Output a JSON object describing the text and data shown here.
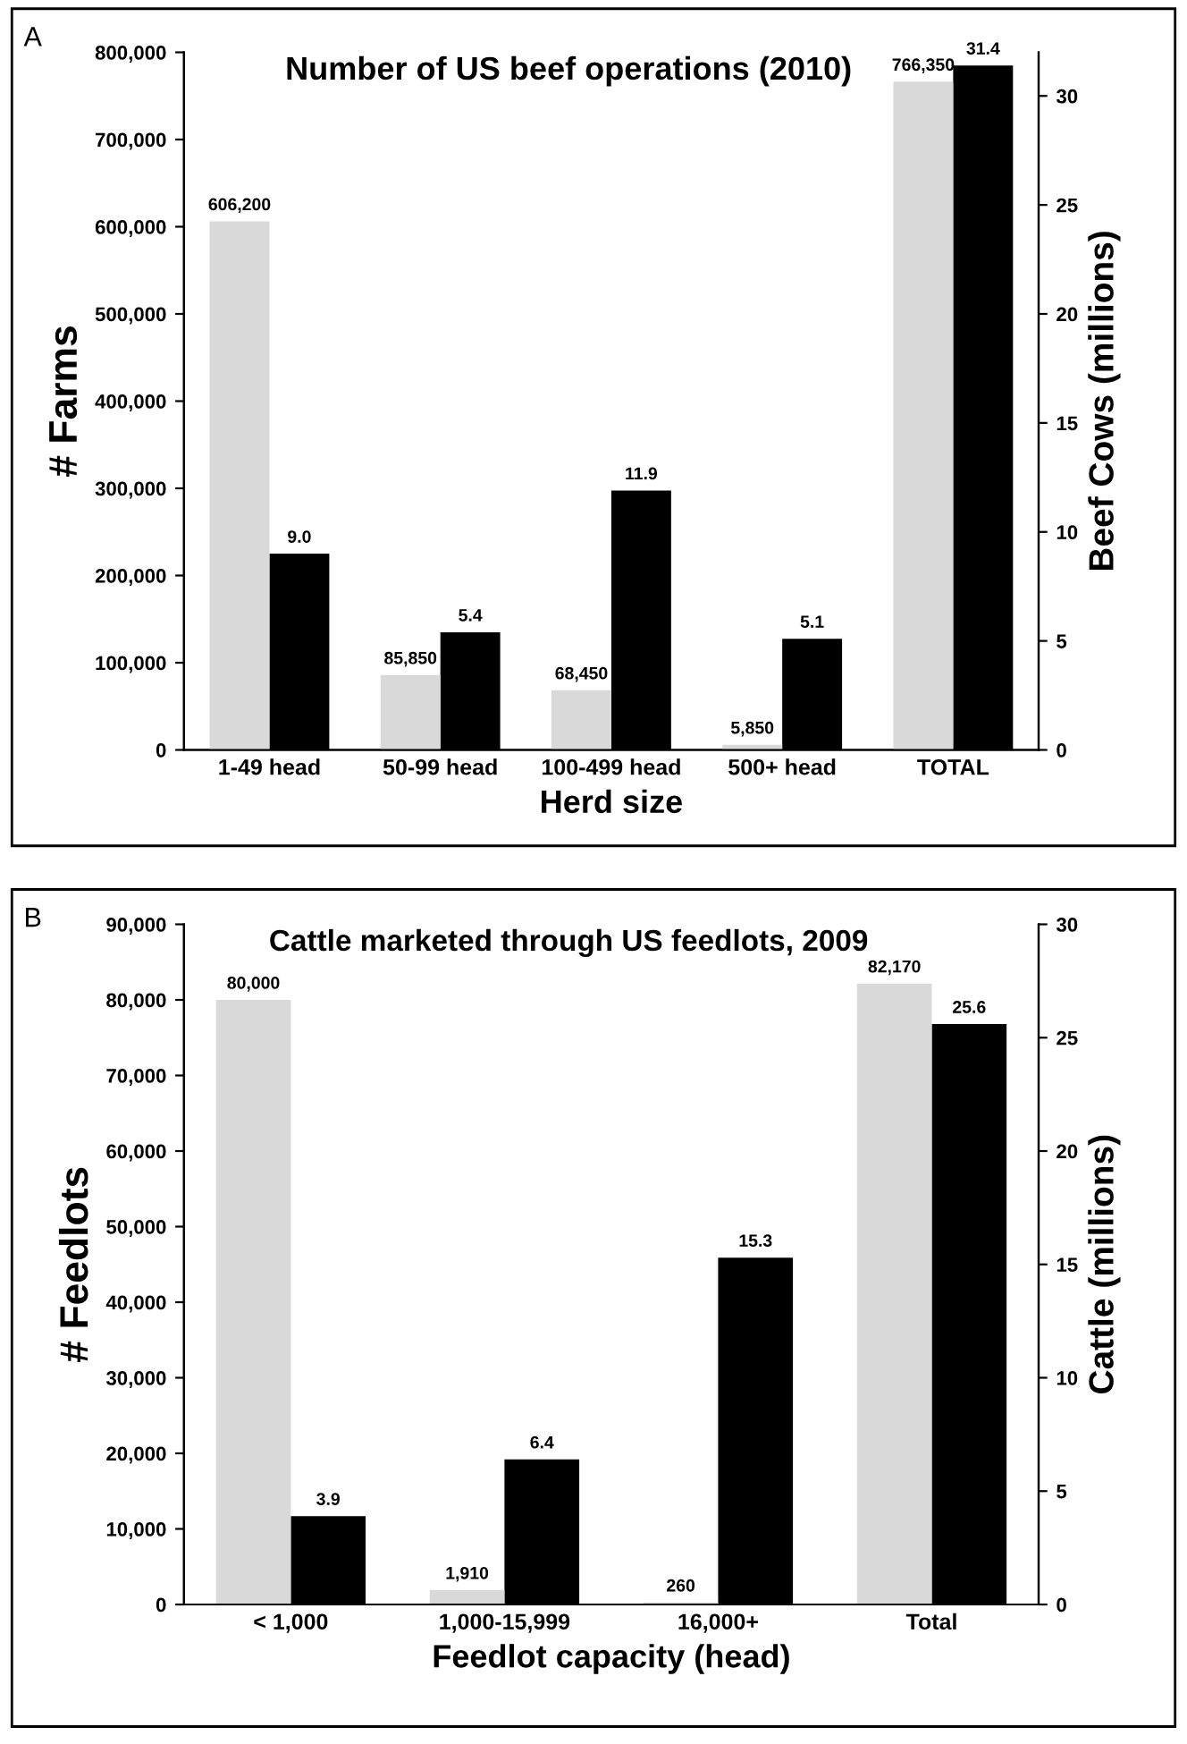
{
  "chart_data": [
    {
      "type": "bar",
      "title": "Number of US beef operations (2010)",
      "xlabel": "Herd size",
      "ylabel": "# Farms",
      "y2label": "Beef Cows (millions)",
      "annotations": [
        "A"
      ],
      "categories": [
        "1-49 head",
        "50-99 head",
        "100-499 head",
        "500+ head",
        "TOTAL"
      ],
      "series": [
        {
          "color": "#d9d9d9",
          "values": [
            606200,
            85850,
            68450,
            5850,
            766350
          ],
          "value_labels": [
            "606,200",
            "85,850",
            "68,450",
            "5,850",
            "766,350"
          ]
        },
        {
          "color": "#000000",
          "axis": "y2",
          "values": [
            9.0,
            5.4,
            11.9,
            5.1,
            31.4
          ],
          "value_labels": [
            "9.0",
            "5.4",
            "11.9",
            "5.1",
            "31.4"
          ]
        }
      ],
      "ylim": [
        0,
        800000
      ],
      "yticks": [
        0,
        {
          "value": 100000,
          "label": "100,000"
        },
        {
          "value": 200000,
          "label": "200,000"
        },
        {
          "value": 300000,
          "label": "300,000"
        },
        {
          "value": 400000,
          "label": "400,000"
        },
        {
          "value": 500000,
          "label": "500,000"
        },
        {
          "value": 600000,
          "label": "600,000"
        },
        {
          "value": 700000,
          "label": "700,000"
        },
        {
          "value": 800000,
          "label": "800,000"
        }
      ],
      "y2lim": [
        0,
        32
      ],
      "y2ticks": [
        0,
        5,
        10,
        15,
        20,
        25,
        30
      ],
      "grid": false,
      "legend": false
    },
    {
      "type": "bar",
      "title": "Cattle marketed through US feedlots, 2009",
      "xlabel": "Feedlot capacity (head)",
      "ylabel": "# Feedlots",
      "y2label": "Cattle (millions)",
      "annotations": [
        "B"
      ],
      "categories": [
        "< 1,000",
        "1,000-15,999",
        "16,000+",
        "Total"
      ],
      "series": [
        {
          "color": "#d9d9d9",
          "values": [
            80000,
            1910,
            260,
            82170
          ],
          "value_labels": [
            "80,000",
            "1,910",
            "260",
            "82,170"
          ]
        },
        {
          "color": "#000000",
          "axis": "y2",
          "values": [
            3.9,
            6.4,
            15.3,
            25.6
          ],
          "value_labels": [
            "3.9",
            "6.4",
            "15.3",
            "25.6"
          ]
        }
      ],
      "ylim": [
        0,
        90000
      ],
      "yticks": [
        0,
        {
          "value": 10000,
          "label": "10,000"
        },
        {
          "value": 20000,
          "label": "20,000"
        },
        {
          "value": 30000,
          "label": "30,000"
        },
        {
          "value": 40000,
          "label": "40,000"
        },
        {
          "value": 50000,
          "label": "50,000"
        },
        {
          "value": 60000,
          "label": "60,000"
        },
        {
          "value": 70000,
          "label": "70,000"
        },
        {
          "value": 80000,
          "label": "80,000"
        },
        {
          "value": 90000,
          "label": "90,000"
        }
      ],
      "y2lim": [
        0,
        30
      ],
      "y2ticks": [
        0,
        5,
        10,
        15,
        20,
        25,
        30
      ],
      "grid": false,
      "legend": false
    }
  ]
}
